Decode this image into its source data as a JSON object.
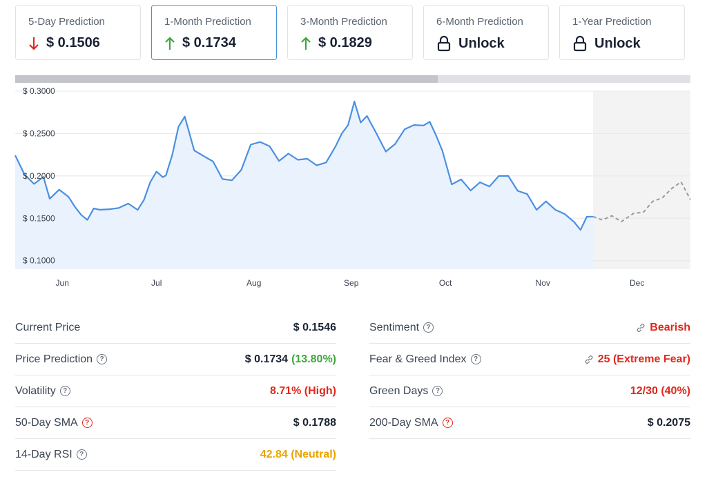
{
  "cards": [
    {
      "label": "5-Day Prediction",
      "value": "$ 0.1506",
      "dir": "down"
    },
    {
      "label": "1-Month Prediction",
      "value": "$ 0.1734",
      "dir": "up"
    },
    {
      "label": "3-Month Prediction",
      "value": "$ 0.1829",
      "dir": "up"
    },
    {
      "label": "6-Month Prediction",
      "value": "Unlock",
      "dir": "lock"
    },
    {
      "label": "1-Year Prediction",
      "value": "Unlock",
      "dir": "lock"
    }
  ],
  "colors": {
    "line": "#4a8fe2",
    "area": "#eaf2fd",
    "forecast": "#9a9a9a",
    "forecast_bg": "#f3f3f3",
    "up": "#3ba83b",
    "down": "#e0281b",
    "neutral": "#e8a500"
  },
  "chart_data": {
    "type": "line",
    "ylim": [
      0.09,
      0.3
    ],
    "y_ticks": [
      "$ 0.3000",
      "$ 0.2500",
      "$ 0.2000",
      "$ 0.1500",
      "$ 0.1000"
    ],
    "y_tick_values": [
      0.3,
      0.25,
      0.2,
      0.15,
      0.1
    ],
    "x_ticks": [
      "Jun",
      "Jul",
      "Aug",
      "Sep",
      "Oct",
      "Nov",
      "Dec"
    ],
    "x_tick_dates": [
      "2024-06-01",
      "2024-07-01",
      "2024-08-01",
      "2024-09-01",
      "2024-10-01",
      "2024-11-01",
      "2024-12-01"
    ],
    "x_start": "2024-05-17",
    "x_end": "2024-12-18",
    "history": {
      "dates": [
        "2024-05-17",
        "2024-05-20",
        "2024-05-23",
        "2024-05-26",
        "2024-05-28",
        "2024-05-31",
        "2024-06-03",
        "2024-06-05",
        "2024-06-07",
        "2024-06-09",
        "2024-06-11",
        "2024-06-13",
        "2024-06-16",
        "2024-06-19",
        "2024-06-22",
        "2024-06-25",
        "2024-06-27",
        "2024-06-29",
        "2024-07-01",
        "2024-07-03",
        "2024-07-04",
        "2024-07-06",
        "2024-07-08",
        "2024-07-10",
        "2024-07-13",
        "2024-07-16",
        "2024-07-19",
        "2024-07-22",
        "2024-07-25",
        "2024-07-28",
        "2024-07-31",
        "2024-08-03",
        "2024-08-06",
        "2024-08-09",
        "2024-08-12",
        "2024-08-15",
        "2024-08-18",
        "2024-08-21",
        "2024-08-24",
        "2024-08-27",
        "2024-08-29",
        "2024-08-31",
        "2024-09-02",
        "2024-09-04",
        "2024-09-06",
        "2024-09-09",
        "2024-09-12",
        "2024-09-15",
        "2024-09-18",
        "2024-09-21",
        "2024-09-24",
        "2024-09-26",
        "2024-09-28",
        "2024-09-30",
        "2024-10-03",
        "2024-10-06",
        "2024-10-09",
        "2024-10-12",
        "2024-10-15",
        "2024-10-18",
        "2024-10-21",
        "2024-10-24",
        "2024-10-27",
        "2024-10-30",
        "2024-11-02",
        "2024-11-05",
        "2024-11-08",
        "2024-11-11",
        "2024-11-13",
        "2024-11-15",
        "2024-11-17"
      ],
      "values": [
        0.2242,
        0.2015,
        0.1905,
        0.1988,
        0.1731,
        0.1838,
        0.1753,
        0.1637,
        0.1541,
        0.1481,
        0.1616,
        0.1601,
        0.1607,
        0.1622,
        0.1674,
        0.1599,
        0.1717,
        0.1926,
        0.2051,
        0.1985,
        0.2005,
        0.2245,
        0.258,
        0.27,
        0.23,
        0.2234,
        0.217,
        0.1963,
        0.1948,
        0.2071,
        0.2369,
        0.24,
        0.235,
        0.2176,
        0.2263,
        0.219,
        0.2202,
        0.2124,
        0.2158,
        0.2348,
        0.25,
        0.26,
        0.2878,
        0.263,
        0.2707,
        0.2503,
        0.2287,
        0.2377,
        0.255,
        0.26,
        0.2595,
        0.2639,
        0.2479,
        0.23,
        0.19,
        0.1959,
        0.1827,
        0.1925,
        0.1874,
        0.2,
        0.2,
        0.1824,
        0.1786,
        0.16,
        0.17,
        0.16,
        0.155,
        0.1455,
        0.1363,
        0.1519,
        0.152
      ]
    },
    "forecast": {
      "dates": [
        "2024-11-17",
        "2024-11-20",
        "2024-11-23",
        "2024-11-26",
        "2024-11-30",
        "2024-12-03",
        "2024-12-06",
        "2024-12-09",
        "2024-12-12",
        "2024-12-15",
        "2024-12-18"
      ],
      "values": [
        0.152,
        0.148,
        0.153,
        0.146,
        0.156,
        0.157,
        0.17,
        0.174,
        0.185,
        0.193,
        0.172
      ]
    }
  },
  "stats_left": [
    {
      "key": "Current Price",
      "value": "$ 0.1546",
      "help": false
    },
    {
      "key": "Price Prediction",
      "value": "$ 0.1734",
      "extra": "(13.80%)",
      "help": true
    },
    {
      "key": "Volatility",
      "value": "8.71% (High)",
      "help": true,
      "tone": "red"
    },
    {
      "key": "50-Day SMA",
      "value": "$ 0.1788",
      "help": true,
      "help_red": true
    },
    {
      "key": "14-Day RSI",
      "value": "42.84 (Neutral)",
      "help": true,
      "tone": "yellow"
    }
  ],
  "stats_right": [
    {
      "key": "Sentiment",
      "value": "Bearish",
      "help": true,
      "link": true,
      "tone": "red"
    },
    {
      "key": "Fear & Greed Index",
      "value": "25 (Extreme Fear)",
      "help": true,
      "link": true,
      "tone": "red"
    },
    {
      "key": "Green Days",
      "value": "12/30 (40%)",
      "help": true,
      "tone": "red"
    },
    {
      "key": "200-Day SMA",
      "value": "$ 0.2075",
      "help": true,
      "help_red": true
    }
  ],
  "help_glyph": "?"
}
